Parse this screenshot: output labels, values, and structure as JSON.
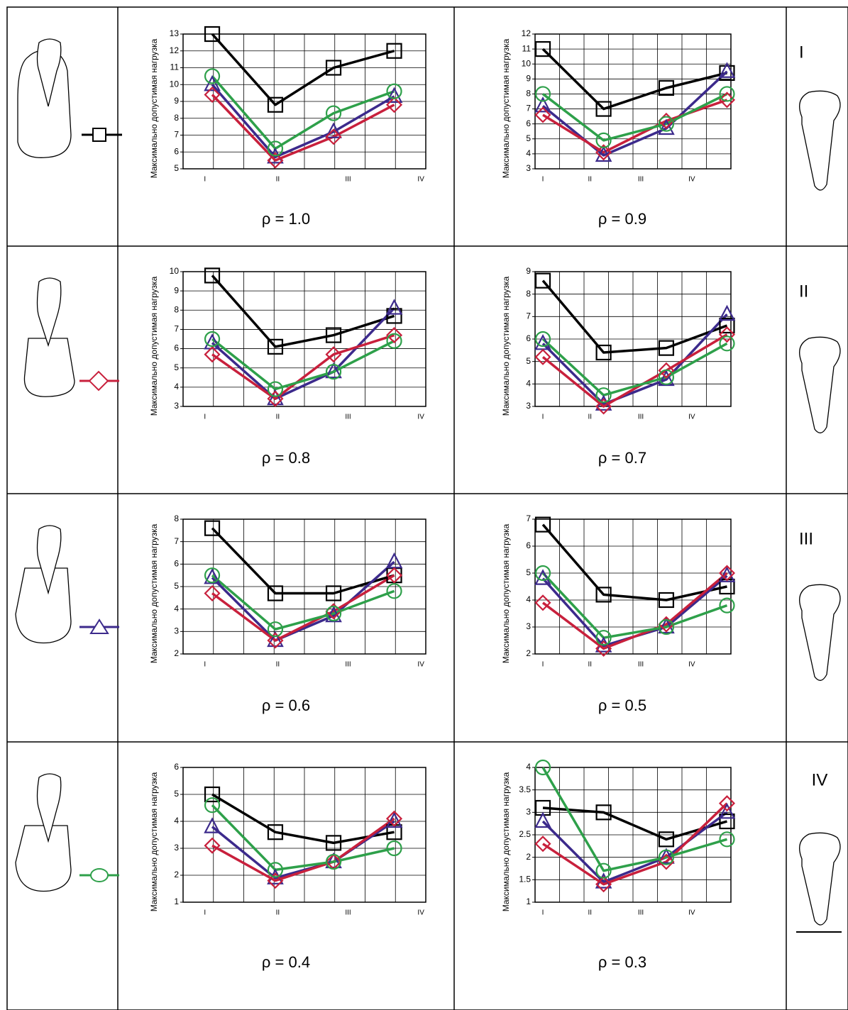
{
  "chart_data": [
    {
      "type": "line",
      "title": "ρ = 1.0",
      "ylabel": "Максимально допустимая нагрузка",
      "categories": [
        "I",
        "II",
        "III",
        "IV"
      ],
      "ylim": [
        5,
        13
      ],
      "yticks": [
        5,
        6,
        7,
        8,
        9,
        10,
        11,
        12,
        13
      ],
      "grid": true,
      "series": [
        {
          "color": "#000000",
          "marker": "square",
          "values": [
            13,
            8.8,
            11,
            12
          ]
        },
        {
          "color": "#3c2a8c",
          "marker": "triangle",
          "values": [
            10,
            5.7,
            7.2,
            9.3
          ]
        },
        {
          "color": "#c8203c",
          "marker": "diamond",
          "values": [
            9.4,
            5.5,
            6.9,
            8.8
          ]
        },
        {
          "color": "#2ea04a",
          "marker": "circle",
          "values": [
            10.5,
            6.2,
            8.3,
            9.6
          ]
        }
      ]
    },
    {
      "type": "line",
      "title": "ρ = 0.9",
      "ylabel": "Максимально допустимая нагрузка",
      "categories": [
        "I",
        "II",
        "III",
        "IV"
      ],
      "ylim": [
        3,
        12
      ],
      "yticks": [
        3,
        4,
        5,
        6,
        7,
        8,
        9,
        10,
        11,
        12
      ],
      "grid": true,
      "series": [
        {
          "color": "#000000",
          "marker": "square",
          "values": [
            11,
            7,
            8.4,
            9.4
          ]
        },
        {
          "color": "#3c2a8c",
          "marker": "triangle",
          "values": [
            7.2,
            3.9,
            5.7,
            9.5
          ]
        },
        {
          "color": "#c8203c",
          "marker": "diamond",
          "values": [
            6.6,
            4.1,
            6.2,
            7.6
          ]
        },
        {
          "color": "#2ea04a",
          "marker": "circle",
          "values": [
            8,
            4.9,
            6,
            8
          ]
        }
      ]
    },
    {
      "type": "line",
      "title": "ρ = 0.8",
      "ylabel": "Максимально допустимая нагрузка",
      "categories": [
        "I",
        "II",
        "III",
        "IV"
      ],
      "ylim": [
        3,
        10
      ],
      "yticks": [
        3,
        4,
        5,
        6,
        7,
        8,
        9,
        10
      ],
      "grid": true,
      "series": [
        {
          "color": "#000000",
          "marker": "square",
          "values": [
            9.8,
            6.1,
            6.7,
            7.7
          ]
        },
        {
          "color": "#3c2a8c",
          "marker": "triangle",
          "values": [
            6.3,
            3.4,
            4.8,
            8.1
          ]
        },
        {
          "color": "#c8203c",
          "marker": "diamond",
          "values": [
            5.7,
            3.4,
            5.7,
            6.7
          ]
        },
        {
          "color": "#2ea04a",
          "marker": "circle",
          "values": [
            6.5,
            3.9,
            4.8,
            6.4
          ]
        }
      ]
    },
    {
      "type": "line",
      "title": "ρ = 0.7",
      "ylabel": "Максимально допустимая нагрузка",
      "categories": [
        "I",
        "II",
        "III",
        "IV"
      ],
      "ylim": [
        3,
        9
      ],
      "yticks": [
        3,
        4,
        5,
        6,
        7,
        8,
        9
      ],
      "grid": true,
      "series": [
        {
          "color": "#000000",
          "marker": "square",
          "values": [
            8.6,
            5.4,
            5.6,
            6.6
          ]
        },
        {
          "color": "#3c2a8c",
          "marker": "triangle",
          "values": [
            5.8,
            3.1,
            4.2,
            7.1
          ]
        },
        {
          "color": "#c8203c",
          "marker": "diamond",
          "values": [
            5.2,
            3.0,
            4.6,
            6.2
          ]
        },
        {
          "color": "#2ea04a",
          "marker": "circle",
          "values": [
            6.0,
            3.5,
            4.3,
            5.8
          ]
        }
      ]
    },
    {
      "type": "line",
      "title": "ρ = 0.6",
      "ylabel": "Максимально допустимая нагрузка",
      "categories": [
        "I",
        "II",
        "III",
        "IV"
      ],
      "ylim": [
        2,
        8
      ],
      "yticks": [
        2,
        3,
        4,
        5,
        6,
        7,
        8
      ],
      "grid": true,
      "series": [
        {
          "color": "#000000",
          "marker": "square",
          "values": [
            7.6,
            4.7,
            4.7,
            5.5
          ]
        },
        {
          "color": "#3c2a8c",
          "marker": "triangle",
          "values": [
            5.4,
            2.6,
            3.7,
            6.1
          ]
        },
        {
          "color": "#c8203c",
          "marker": "diamond",
          "values": [
            4.7,
            2.6,
            3.9,
            5.5
          ]
        },
        {
          "color": "#2ea04a",
          "marker": "circle",
          "values": [
            5.5,
            3.1,
            3.8,
            4.8
          ]
        }
      ]
    },
    {
      "type": "line",
      "title": "ρ = 0.5",
      "ylabel": "Максимально допустимая нагрузка",
      "categories": [
        "I",
        "II",
        "III",
        "IV"
      ],
      "ylim": [
        2,
        7
      ],
      "yticks": [
        2,
        3,
        4,
        5,
        6,
        7
      ],
      "grid": true,
      "series": [
        {
          "color": "#000000",
          "marker": "square",
          "values": [
            6.8,
            4.2,
            4.0,
            4.5
          ]
        },
        {
          "color": "#3c2a8c",
          "marker": "triangle",
          "values": [
            4.8,
            2.3,
            3.0,
            4.9
          ]
        },
        {
          "color": "#c8203c",
          "marker": "diamond",
          "values": [
            3.9,
            2.2,
            3.1,
            5.0
          ]
        },
        {
          "color": "#2ea04a",
          "marker": "circle",
          "values": [
            5.0,
            2.6,
            3.0,
            3.8
          ]
        }
      ]
    },
    {
      "type": "line",
      "title": "ρ = 0.4",
      "ylabel": "Максимально допустимая нагрузка",
      "categories": [
        "I",
        "II",
        "III",
        "IV"
      ],
      "ylim": [
        1,
        6
      ],
      "yticks": [
        1,
        2,
        3,
        4,
        5,
        6
      ],
      "grid": true,
      "series": [
        {
          "color": "#000000",
          "marker": "square",
          "values": [
            5.0,
            3.6,
            3.2,
            3.6
          ]
        },
        {
          "color": "#3c2a8c",
          "marker": "triangle",
          "values": [
            3.8,
            1.9,
            2.5,
            4.0
          ]
        },
        {
          "color": "#c8203c",
          "marker": "diamond",
          "values": [
            3.1,
            1.8,
            2.5,
            4.1
          ]
        },
        {
          "color": "#2ea04a",
          "marker": "circle",
          "values": [
            4.6,
            2.2,
            2.5,
            3.0
          ]
        }
      ]
    },
    {
      "type": "line",
      "title": "ρ = 0.3",
      "ylabel": "Максимально допустимая нагрузка",
      "categories": [
        "I",
        "II",
        "III",
        "IV"
      ],
      "ylim": [
        1,
        4
      ],
      "yticks": [
        1,
        1.5,
        2,
        2.5,
        3,
        3.5,
        4
      ],
      "grid": true,
      "series": [
        {
          "color": "#000000",
          "marker": "square",
          "values": [
            3.1,
            3.0,
            2.4,
            2.8
          ]
        },
        {
          "color": "#3c2a8c",
          "marker": "triangle",
          "values": [
            2.8,
            1.45,
            2.0,
            3.0
          ]
        },
        {
          "color": "#c8203c",
          "marker": "diamond",
          "values": [
            2.3,
            1.4,
            1.9,
            3.2
          ]
        },
        {
          "color": "#2ea04a",
          "marker": "circle",
          "values": [
            4.0,
            1.7,
            2.0,
            2.4
          ]
        }
      ]
    }
  ],
  "row_labels": [
    "I",
    "II",
    "III",
    "IV"
  ]
}
